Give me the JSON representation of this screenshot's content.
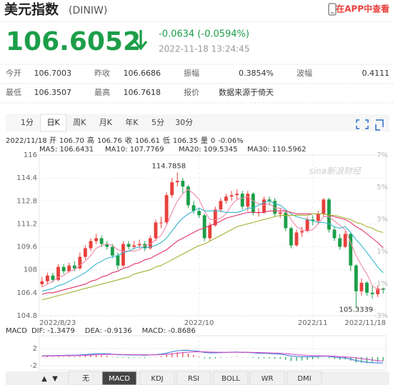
{
  "header": {
    "title": "美元指数",
    "code": "(DINIW)",
    "app_link": "在APP中查看"
  },
  "quote": {
    "price": "106.6052",
    "change": "-0.0634 (-0.0594%)",
    "time": "2022-11-18 13:24:45"
  },
  "quote_table": [
    [
      "今开",
      "106.7003",
      "昨收",
      "106.6686",
      "振幅",
      "0.3854%",
      "波幅",
      "0.4111"
    ],
    [
      "最低",
      "106.3507",
      "最高",
      "106.7618",
      "报价",
      "数据来源于倚天"
    ]
  ],
  "tabs": {
    "items": [
      "1分",
      "日K",
      "周K",
      "月K",
      "年K",
      "5分",
      "30分"
    ],
    "selected": 1
  },
  "indicator_tabs": {
    "items": [
      "▲",
      "▼",
      "无",
      "MACD",
      "KDJ",
      "RSI",
      "BOLL",
      "WR",
      "DMI"
    ],
    "selected": 3
  },
  "chart_data": {
    "type": "candlestick",
    "watermark": "sina新浪财经",
    "ohlc_line": [
      {
        "text": "2022/11/18 开",
        "color": "#555555"
      },
      {
        "text": "106.70",
        "color": "#e8413c"
      },
      {
        "text": "高",
        "color": "#555555"
      },
      {
        "text": "106.76",
        "color": "#e8413c"
      },
      {
        "text": "收",
        "color": "#555555"
      },
      {
        "text": "106.61",
        "color": "#1c9e49"
      },
      {
        "text": "低",
        "color": "#555555"
      },
      {
        "text": "106.35",
        "color": "#1c9e49"
      },
      {
        "text": "量",
        "color": "#555555"
      },
      {
        "text": "0",
        "color": "#555555"
      },
      {
        "text": "-0.06%",
        "color": "#1c9e49"
      }
    ],
    "up_color": "#e8413c",
    "down_color": "#1c9e49",
    "categories": [
      "2022/8/23",
      null,
      null,
      null,
      null,
      null,
      null,
      null,
      null,
      null,
      null,
      null,
      null,
      null,
      null,
      null,
      null,
      null,
      null,
      null,
      null,
      null,
      null,
      null,
      null,
      null,
      null,
      null,
      null,
      "2022/10",
      null,
      null,
      null,
      null,
      null,
      null,
      null,
      null,
      null,
      null,
      null,
      null,
      null,
      null,
      null,
      null,
      null,
      null,
      null,
      null,
      "2022/11",
      null,
      null,
      null,
      null,
      null,
      null,
      null,
      null,
      null,
      null,
      null,
      null,
      "2022/11/18"
    ],
    "candles": [
      [
        107.0,
        107.5,
        106.8,
        107.2
      ],
      [
        107.2,
        107.8,
        107.0,
        107.6
      ],
      [
        107.6,
        107.8,
        107.1,
        107.3
      ],
      [
        107.3,
        108.4,
        107.2,
        108.2
      ],
      [
        108.2,
        108.4,
        107.7,
        107.9
      ],
      [
        107.9,
        108.5,
        107.8,
        108.3
      ],
      [
        108.3,
        108.6,
        107.9,
        108.1
      ],
      [
        108.1,
        109.2,
        108.0,
        108.9
      ],
      [
        108.9,
        109.7,
        108.7,
        109.5
      ],
      [
        109.5,
        110.2,
        109.3,
        110.0
      ],
      [
        110.0,
        110.5,
        109.8,
        110.2
      ],
      [
        110.2,
        110.4,
        109.6,
        109.8
      ],
      [
        109.8,
        110.0,
        109.4,
        109.6
      ],
      [
        109.6,
        109.8,
        108.8,
        109.0
      ],
      [
        109.0,
        109.2,
        108.0,
        108.3
      ],
      [
        108.3,
        110.0,
        108.2,
        109.8
      ],
      [
        109.8,
        110.0,
        109.4,
        109.6
      ],
      [
        109.6,
        110.0,
        109.4,
        109.7
      ],
      [
        109.7,
        110.1,
        109.5,
        109.8
      ],
      [
        109.8,
        110.0,
        109.3,
        109.5
      ],
      [
        109.5,
        110.4,
        109.4,
        110.2
      ],
      [
        110.2,
        111.5,
        110.0,
        111.3
      ],
      [
        111.3,
        111.7,
        110.9,
        111.3
      ],
      [
        111.3,
        113.4,
        111.2,
        113.2
      ],
      [
        113.2,
        114.4,
        113.0,
        114.1
      ],
      [
        114.1,
        114.7858,
        113.8,
        114.2
      ],
      [
        114.2,
        114.4,
        113.3,
        113.8
      ],
      [
        113.8,
        113.9,
        112.3,
        112.5
      ],
      [
        112.5,
        112.8,
        111.9,
        112.1
      ],
      [
        112.1,
        112.3,
        111.6,
        111.8
      ],
      [
        111.8,
        111.9,
        110.0,
        110.2
      ],
      [
        110.2,
        111.3,
        110.0,
        111.1
      ],
      [
        111.1,
        112.4,
        111.0,
        112.2
      ],
      [
        112.2,
        113.0,
        112.0,
        112.8
      ],
      [
        112.8,
        113.3,
        112.6,
        113.1
      ],
      [
        113.1,
        113.5,
        112.8,
        113.2
      ],
      [
        113.2,
        113.6,
        112.9,
        113.3
      ],
      [
        113.3,
        113.5,
        112.2,
        112.4
      ],
      [
        112.4,
        113.5,
        112.1,
        113.3
      ],
      [
        113.3,
        113.4,
        111.8,
        112.0
      ],
      [
        112.0,
        112.3,
        111.7,
        112.0
      ],
      [
        112.0,
        113.1,
        111.9,
        112.9
      ],
      [
        112.9,
        113.1,
        112.5,
        112.8
      ],
      [
        112.8,
        113.0,
        111.7,
        111.9
      ],
      [
        111.9,
        112.3,
        111.6,
        112.0
      ],
      [
        112.0,
        112.1,
        110.7,
        110.9
      ],
      [
        110.9,
        111.0,
        109.5,
        109.7
      ],
      [
        109.7,
        110.8,
        109.6,
        110.6
      ],
      [
        110.6,
        111.0,
        110.3,
        110.7
      ],
      [
        110.7,
        111.7,
        110.6,
        111.5
      ],
      [
        111.5,
        111.8,
        111.1,
        111.4
      ],
      [
        111.4,
        112.1,
        111.2,
        111.9
      ],
      [
        111.9,
        113.0,
        111.7,
        112.9
      ],
      [
        112.9,
        113.0,
        110.6,
        110.8
      ],
      [
        110.8,
        111.0,
        110.0,
        110.2
      ],
      [
        110.2,
        110.5,
        109.4,
        109.6
      ],
      [
        109.6,
        110.7,
        109.5,
        110.5
      ],
      [
        110.5,
        110.6,
        107.9,
        108.3
      ],
      [
        108.3,
        108.4,
        105.3339,
        106.5
      ],
      [
        106.5,
        107.4,
        106.2,
        107.1
      ],
      [
        107.1,
        107.2,
        106.2,
        106.4
      ],
      [
        106.4,
        106.9,
        106.0,
        106.3
      ],
      [
        106.3,
        106.9,
        106.1,
        106.7
      ],
      [
        106.7,
        106.76,
        106.35,
        106.61
      ]
    ],
    "series": [
      {
        "name": "MA5: 106.6431",
        "color": "#f08aa8",
        "values": [
          106.8,
          107.0,
          107.2,
          107.5,
          107.6,
          107.9,
          108.0,
          108.3,
          108.6,
          109.0,
          109.5,
          109.7,
          109.8,
          109.7,
          109.4,
          109.3,
          109.3,
          109.3,
          109.4,
          109.7,
          109.8,
          110.1,
          110.4,
          111.1,
          112.0,
          112.8,
          113.3,
          113.6,
          113.3,
          112.9,
          112.1,
          111.5,
          111.5,
          111.6,
          111.9,
          112.5,
          112.9,
          113.0,
          113.1,
          112.8,
          112.6,
          112.5,
          112.6,
          112.3,
          112.3,
          112.1,
          111.5,
          111.0,
          110.8,
          110.7,
          110.8,
          111.2,
          111.7,
          111.7,
          111.4,
          111.1,
          110.8,
          109.9,
          109.0,
          108.3,
          107.7,
          106.9,
          106.6,
          106.64
        ]
      },
      {
        "name": "MA10: 107.7769",
        "color": "#35b5d0",
        "values": [
          106.5,
          106.6,
          106.7,
          106.9,
          107.0,
          107.2,
          107.4,
          107.6,
          107.8,
          108.1,
          108.4,
          108.6,
          108.8,
          108.9,
          109.0,
          109.2,
          109.3,
          109.5,
          109.6,
          109.5,
          109.6,
          109.7,
          109.9,
          110.2,
          110.7,
          111.2,
          111.6,
          111.9,
          112.1,
          112.3,
          112.1,
          112.1,
          112.1,
          112.1,
          112.0,
          112.0,
          112.0,
          112.1,
          112.3,
          112.3,
          112.5,
          112.7,
          112.8,
          112.6,
          112.5,
          112.2,
          111.9,
          111.7,
          111.6,
          111.5,
          111.4,
          111.3,
          111.3,
          111.2,
          111.0,
          110.9,
          111.0,
          110.6,
          110.1,
          109.7,
          109.2,
          108.7,
          108.2,
          107.78
        ]
      },
      {
        "name": "MA20: 109.5345",
        "color": "#e2336b",
        "values": [
          106.3,
          106.4,
          106.4,
          106.5,
          106.6,
          106.7,
          106.8,
          106.9,
          107.0,
          107.2,
          107.3,
          107.5,
          107.6,
          107.8,
          107.9,
          108.1,
          108.2,
          108.4,
          108.5,
          108.7,
          108.8,
          109.0,
          109.2,
          109.4,
          109.7,
          110.0,
          110.2,
          110.4,
          110.6,
          110.8,
          110.9,
          111.1,
          111.2,
          111.4,
          111.6,
          111.7,
          111.8,
          111.9,
          112.0,
          112.0,
          112.0,
          112.0,
          112.1,
          112.1,
          112.1,
          112.1,
          112.0,
          111.9,
          111.9,
          111.9,
          111.9,
          111.9,
          111.9,
          111.8,
          111.7,
          111.6,
          111.5,
          111.3,
          111.0,
          110.8,
          110.5,
          110.2,
          109.9,
          109.53
        ]
      },
      {
        "name": "MA30: 110.5962",
        "color": "#a3b131",
        "values": [
          105.9,
          106.0,
          106.1,
          106.2,
          106.3,
          106.4,
          106.5,
          106.6,
          106.7,
          106.8,
          106.9,
          107.0,
          107.1,
          107.2,
          107.3,
          107.4,
          107.5,
          107.7,
          107.8,
          107.9,
          108.0,
          108.2,
          108.3,
          108.5,
          108.7,
          108.9,
          109.1,
          109.3,
          109.5,
          109.7,
          109.8,
          110.0,
          110.2,
          110.4,
          110.6,
          110.8,
          111.0,
          111.1,
          111.2,
          111.3,
          111.4,
          111.5,
          111.6,
          111.7,
          111.8,
          111.8,
          111.8,
          111.8,
          111.8,
          111.8,
          111.9,
          111.9,
          111.9,
          111.8,
          111.8,
          111.7,
          111.6,
          111.5,
          111.3,
          111.2,
          111.0,
          110.9,
          110.7,
          110.6
        ]
      }
    ],
    "ylim": [
      104.8,
      116
    ],
    "yticks": [
      116,
      114.4,
      112.8,
      111.2,
      109.6,
      108,
      106.4,
      104.8
    ],
    "y2lim": [
      -3,
      7
    ],
    "y2ticks": [
      {
        "value": 7,
        "label": "7%"
      },
      {
        "value": 5,
        "label": "5%"
      },
      {
        "value": 3,
        "label": "3%"
      },
      {
        "value": 1,
        "label": "1%"
      },
      {
        "value": -1,
        "label": "-1%"
      },
      {
        "value": -3,
        "label": "-3%"
      }
    ],
    "grid": true,
    "macd": {
      "legend": [
        {
          "text": "MACD",
          "color": "#666666"
        },
        {
          "text": "DIF: -1.3479",
          "color": "#3a7fd5"
        },
        {
          "text": "DEA: -0.9136",
          "color": "#d24fc8"
        },
        {
          "text": "MACD: -0.8686",
          "color": "#e8413c"
        }
      ],
      "ylim": [
        -3,
        5
      ],
      "yticks": [
        2,
        -2
      ],
      "dif": {
        "color": "#3a7fd5",
        "values": [
          0.3,
          0.35,
          0.35,
          0.4,
          0.4,
          0.45,
          0.45,
          0.5,
          0.6,
          0.7,
          0.8,
          0.8,
          0.8,
          0.7,
          0.55,
          0.55,
          0.5,
          0.5,
          0.5,
          0.45,
          0.5,
          0.6,
          0.7,
          0.95,
          1.25,
          1.5,
          1.6,
          1.6,
          1.5,
          1.35,
          1.1,
          1.0,
          1.0,
          1.05,
          1.1,
          1.15,
          1.2,
          1.1,
          1.1,
          1.0,
          0.9,
          0.9,
          0.85,
          0.75,
          0.7,
          0.5,
          0.25,
          0.15,
          0.1,
          0.1,
          0.1,
          0.15,
          0.25,
          0.15,
          0.0,
          -0.15,
          -0.2,
          -0.45,
          -0.8,
          -1.0,
          -1.2,
          -1.3,
          -1.35,
          -1.3479
        ]
      },
      "dea": {
        "color": "#d24fc8",
        "values": [
          0.25,
          0.27,
          0.29,
          0.31,
          0.33,
          0.35,
          0.37,
          0.39,
          0.43,
          0.48,
          0.54,
          0.59,
          0.63,
          0.65,
          0.63,
          0.62,
          0.6,
          0.58,
          0.57,
          0.55,
          0.54,
          0.55,
          0.58,
          0.65,
          0.77,
          0.92,
          1.06,
          1.17,
          1.24,
          1.26,
          1.23,
          1.18,
          1.15,
          1.13,
          1.12,
          1.13,
          1.14,
          1.13,
          1.13,
          1.1,
          1.06,
          1.03,
          1.0,
          0.95,
          0.9,
          0.82,
          0.7,
          0.59,
          0.49,
          0.41,
          0.35,
          0.31,
          0.3,
          0.27,
          0.22,
          0.14,
          0.07,
          -0.03,
          -0.18,
          -0.34,
          -0.51,
          -0.67,
          -0.8,
          -0.9136
        ]
      },
      "hist": {
        "up_color": "#e8413c",
        "down_color": "#1c9e49",
        "values": [
          0.1,
          0.16,
          0.12,
          0.18,
          0.14,
          0.2,
          0.16,
          0.22,
          0.34,
          0.44,
          0.52,
          0.42,
          0.34,
          0.1,
          -0.16,
          -0.14,
          -0.2,
          -0.16,
          -0.14,
          -0.2,
          -0.08,
          0.1,
          0.24,
          0.6,
          0.96,
          1.16,
          1.08,
          0.86,
          0.52,
          0.18,
          -0.26,
          -0.36,
          -0.3,
          -0.16,
          -0.04,
          0.04,
          0.12,
          -0.06,
          -0.06,
          -0.2,
          -0.32,
          -0.26,
          -0.3,
          -0.4,
          -0.4,
          -0.64,
          -0.9,
          -0.88,
          -0.78,
          -0.62,
          -0.5,
          -0.32,
          -0.1,
          -0.24,
          -0.44,
          -0.58,
          -0.54,
          -0.84,
          -1.24,
          -1.32,
          -1.38,
          -1.26,
          -1.1,
          -0.8686
        ]
      }
    }
  }
}
